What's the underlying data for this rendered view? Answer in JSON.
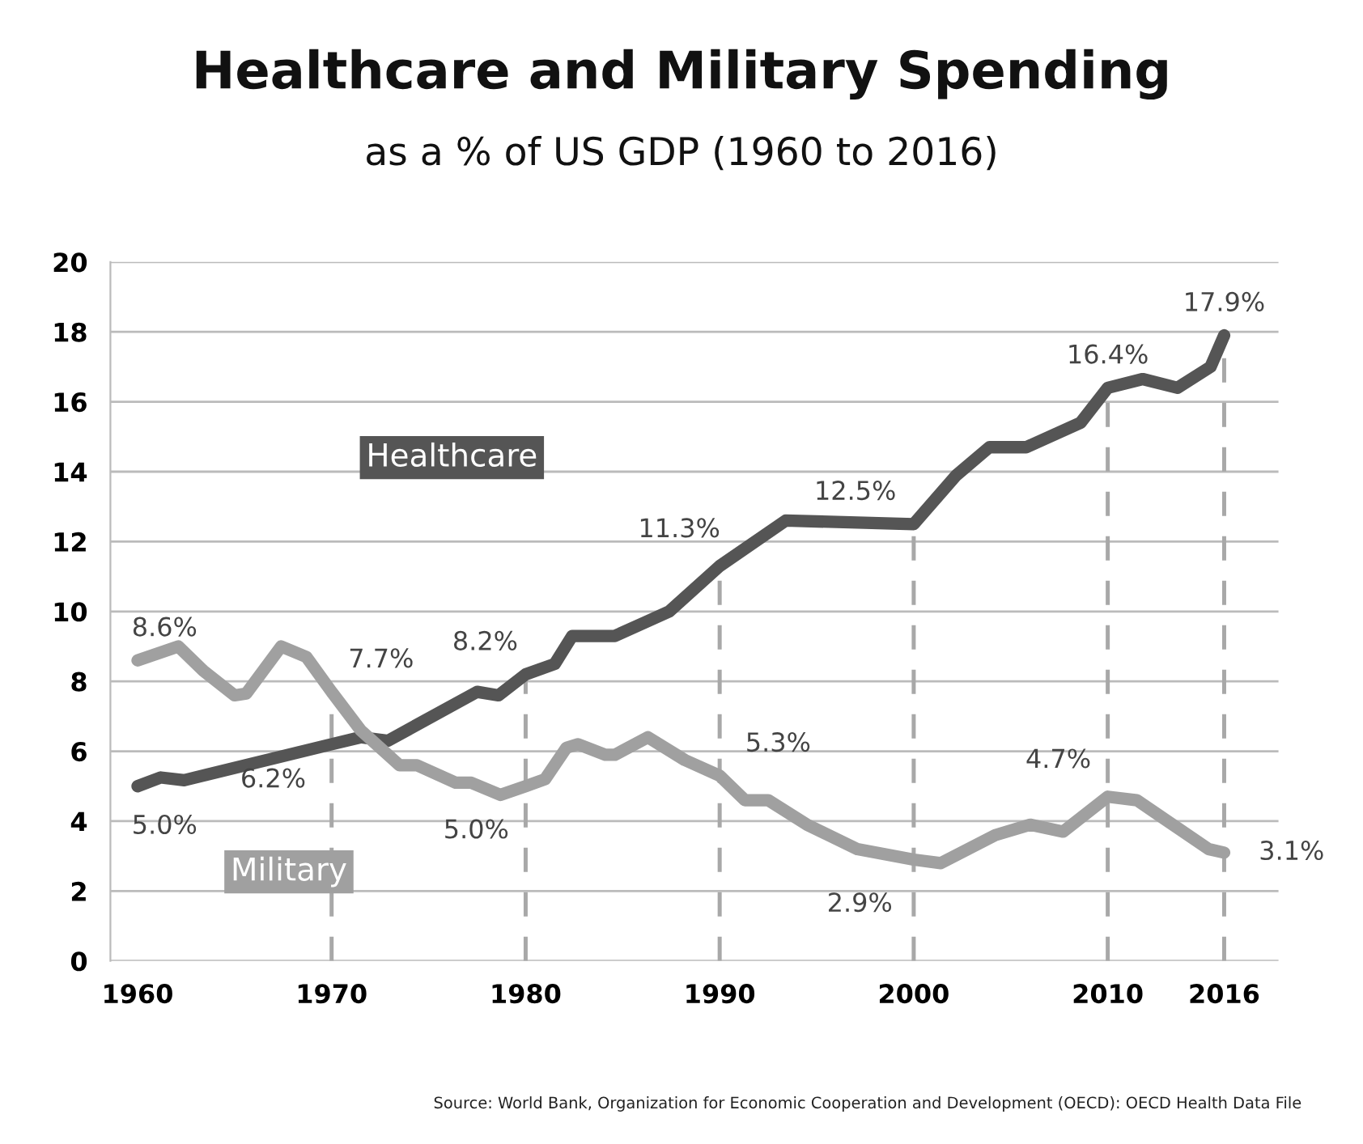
{
  "chart_data": {
    "type": "line",
    "title": "Healthcare and Military Spending",
    "subtitle": "as a % of US GDP (1960 to 2016)",
    "series": [
      {
        "name": "Healthcare",
        "color": "#555555",
        "x": [
          1960,
          1961.2,
          1962.4,
          1970,
          1971.5,
          1972.9,
          1977.5,
          1978.6,
          1980,
          1981.5,
          1982.4,
          1984.6,
          1987.4,
          1990,
          1993.4,
          2000,
          2002.2,
          2003.9,
          2005.8,
          2008.6,
          2010,
          2011.8,
          2013.6,
          2015.3,
          2016
        ],
        "values": [
          5.0,
          5.25,
          5.17,
          6.2,
          6.4,
          6.3,
          7.7,
          7.6,
          8.2,
          8.5,
          9.3,
          9.3,
          10.0,
          11.3,
          12.6,
          12.5,
          13.9,
          14.7,
          14.7,
          15.4,
          16.4,
          16.65,
          16.4,
          17.0,
          17.9
        ],
        "value_labels": [
          "5.0%",
          null,
          null,
          "6.2%",
          null,
          null,
          null,
          null,
          "8.2%",
          null,
          null,
          null,
          null,
          "11.3%",
          null,
          "12.5%",
          null,
          null,
          null,
          null,
          "16.4%",
          null,
          null,
          null,
          "17.9%"
        ]
      },
      {
        "name": "Military",
        "color": "#a0a0a0",
        "x": [
          1960,
          1962.1,
          1963.4,
          1965,
          1965.6,
          1967.4,
          1968.7,
          1970,
          1971.5,
          1973.5,
          1974.4,
          1976.4,
          1977.2,
          1978.7,
          1980,
          1981,
          1982.1,
          1982.7,
          1984.1,
          1984.6,
          1986.3,
          1988.2,
          1990,
          1991.3,
          1992.5,
          1994.5,
          1997.1,
          2000,
          2001.4,
          2004.2,
          2006,
          2007.7,
          2010,
          2011.5,
          2015.2,
          2016
        ],
        "values": [
          8.6,
          9.0,
          8.3,
          7.6,
          7.65,
          9.0,
          8.7,
          7.7,
          6.6,
          5.6,
          5.6,
          5.1,
          5.1,
          4.75,
          5.0,
          5.2,
          6.1,
          6.2,
          5.9,
          5.9,
          6.4,
          5.75,
          5.3,
          4.6,
          4.6,
          3.9,
          3.2,
          2.9,
          2.8,
          3.6,
          3.9,
          3.7,
          4.7,
          4.6,
          3.2,
          3.1
        ],
        "value_labels": [
          "8.6%",
          null,
          null,
          null,
          null,
          null,
          null,
          "7.7%",
          null,
          null,
          null,
          null,
          null,
          null,
          "5.0%",
          null,
          null,
          null,
          null,
          null,
          null,
          null,
          "5.3%",
          null,
          null,
          null,
          null,
          "2.9%",
          null,
          null,
          null,
          null,
          "4.7%",
          null,
          null,
          "3.1%"
        ]
      }
    ],
    "xlim": [
      1958.6,
      2018.8
    ],
    "xticks": [
      1960,
      1970,
      1980,
      1990,
      2000,
      2010,
      2016
    ],
    "ylim": [
      0,
      20
    ],
    "yticks": [
      0,
      2,
      4,
      6,
      8,
      10,
      12,
      14,
      16,
      18,
      20
    ],
    "grid": "y",
    "legend": false,
    "marker": "none",
    "line_style": "solid",
    "ref_lines": [
      {
        "axis": "x",
        "value": 1970,
        "line_style": "dashed",
        "color": "#a8a8a8"
      },
      {
        "axis": "x",
        "value": 1980,
        "line_style": "dashed",
        "color": "#a8a8a8"
      },
      {
        "axis": "x",
        "value": 1990,
        "line_style": "dashed",
        "color": "#a8a8a8"
      },
      {
        "axis": "x",
        "value": 2000,
        "line_style": "dashed",
        "color": "#a8a8a8"
      },
      {
        "axis": "x",
        "value": 2010,
        "line_style": "dashed",
        "color": "#a8a8a8"
      },
      {
        "axis": "x",
        "value": 2016,
        "line_style": "dashed",
        "color": "#a8a8a8"
      }
    ],
    "annotations": [
      "Source: World Bank, Organization for Economic Cooperation and Development (OECD): OECD Health Data File"
    ]
  }
}
